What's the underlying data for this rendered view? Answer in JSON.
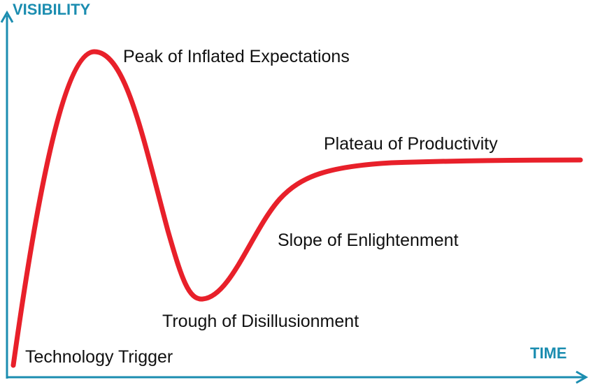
{
  "axes": {
    "y_label": "VISIBILITY",
    "x_label": "TIME"
  },
  "phases": [
    {
      "label": "Technology Trigger"
    },
    {
      "label": "Peak of Inflated Expectations"
    },
    {
      "label": "Trough of Disillusionment"
    },
    {
      "label": "Slope of Enlightenment"
    },
    {
      "label": "Plateau of Productivity"
    }
  ]
}
